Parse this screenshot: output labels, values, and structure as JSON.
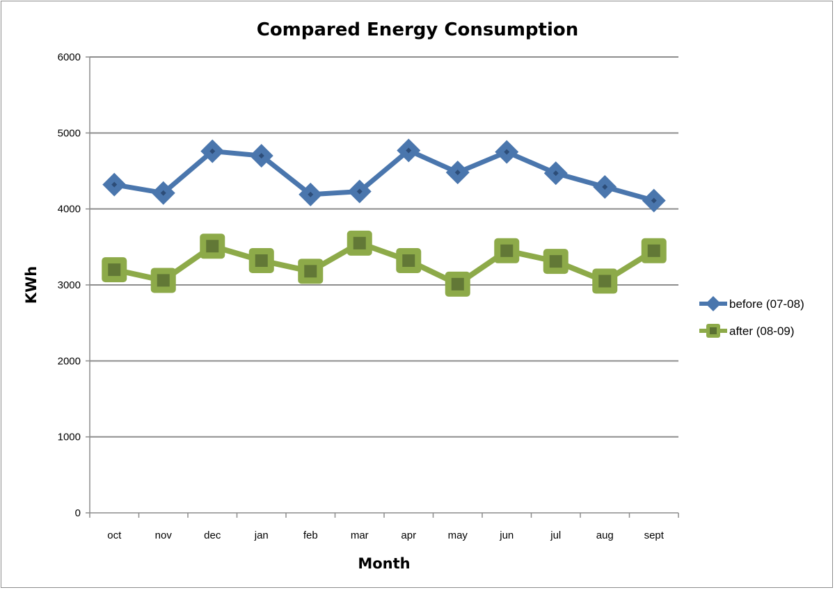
{
  "chart_data": {
    "type": "line",
    "title": "Compared Energy Consumption",
    "xlabel": "Month",
    "ylabel": "KWh",
    "categories": [
      "oct",
      "nov",
      "dec",
      "jan",
      "feb",
      "mar",
      "apr",
      "may",
      "jun",
      "jul",
      "aug",
      "sept"
    ],
    "ylim": [
      0,
      6000
    ],
    "yticks": [
      0,
      1000,
      2000,
      3000,
      4000,
      5000,
      6000
    ],
    "grid": true,
    "legend_position": "right",
    "series": [
      {
        "name": "before (07-08)",
        "marker": "diamond",
        "color": "#4a76ad",
        "values": [
          4320,
          4210,
          4760,
          4700,
          4190,
          4230,
          4770,
          4480,
          4750,
          4470,
          4290,
          4110
        ]
      },
      {
        "name": "after (08-09)",
        "marker": "square",
        "color": "#8daa49",
        "values": [
          3200,
          3060,
          3510,
          3320,
          3180,
          3550,
          3320,
          3010,
          3450,
          3310,
          3050,
          3450
        ]
      }
    ]
  }
}
